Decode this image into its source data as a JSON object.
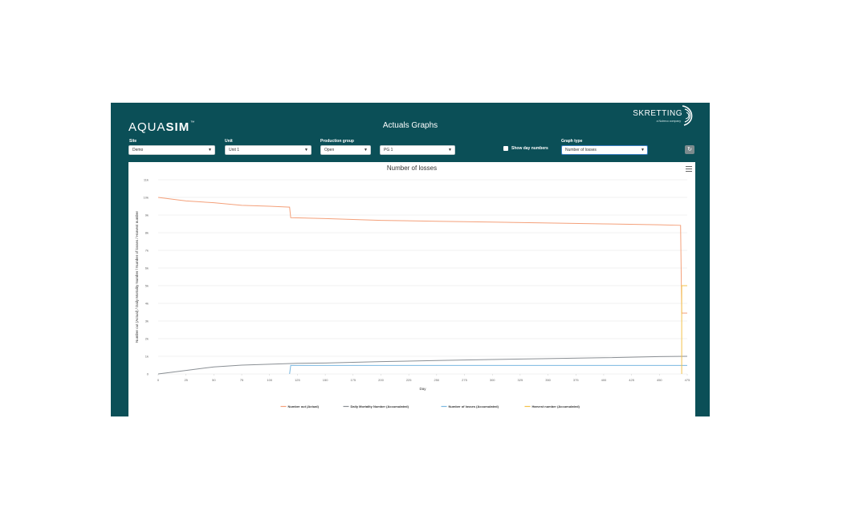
{
  "header": {
    "logo_light": "AQUA",
    "logo_bold": "SIM",
    "logo_tm": "™",
    "title": "Actuals Graphs",
    "brand_name": "SKRETTING",
    "brand_sub": "a Nutreco company"
  },
  "filters": {
    "site": {
      "label": "Site",
      "value": "Demo"
    },
    "unit": {
      "label": "Unit",
      "value": "Unit 1"
    },
    "production_group": {
      "label": "Production group",
      "value": "Open"
    },
    "production_unit": {
      "value": "PG 1"
    },
    "show_day_numbers": {
      "label": "Show day numbers",
      "checked": false
    },
    "graph_type": {
      "label": "Graph type",
      "value": "Number of losses"
    }
  },
  "icons": {
    "caret": "chevron-down-icon",
    "refresh": "refresh-icon",
    "menu": "hamburger-menu-icon"
  },
  "chart_data": {
    "type": "line",
    "title": "Number of losses",
    "xlabel": "Day",
    "ylabel": "Number out (Actual) / Daily Mortality Number / Number of losses / Harvest number",
    "xlim": [
      0,
      475
    ],
    "ylim": [
      0,
      11000
    ],
    "x_ticks": [
      "0",
      "25",
      "50",
      "75",
      "100",
      "125",
      "150",
      "175",
      "200",
      "225",
      "250",
      "275",
      "300",
      "325",
      "350",
      "375",
      "400",
      "425",
      "450",
      "475"
    ],
    "y_ticks": [
      "0",
      "1k",
      "2k",
      "3k",
      "4k",
      "5k",
      "6k",
      "7k",
      "8k",
      "9k",
      "10k",
      "11k"
    ],
    "series": [
      {
        "name": "Number out (Actual)",
        "color": "#f4a07a",
        "points": [
          [
            0,
            10000
          ],
          [
            25,
            9800
          ],
          [
            50,
            9700
          ],
          [
            75,
            9550
          ],
          [
            100,
            9500
          ],
          [
            118,
            9450
          ],
          [
            119,
            8850
          ],
          [
            150,
            8800
          ],
          [
            200,
            8700
          ],
          [
            250,
            8650
          ],
          [
            300,
            8600
          ],
          [
            350,
            8550
          ],
          [
            400,
            8500
          ],
          [
            450,
            8450
          ],
          [
            469,
            8420
          ],
          [
            470,
            3450
          ],
          [
            475,
            3450
          ]
        ]
      },
      {
        "name": "Daily Mortality Number (Accumulated)",
        "color": "#8a8f94",
        "points": [
          [
            0,
            0
          ],
          [
            25,
            200
          ],
          [
            50,
            400
          ],
          [
            75,
            500
          ],
          [
            100,
            550
          ],
          [
            125,
            600
          ],
          [
            150,
            620
          ],
          [
            200,
            700
          ],
          [
            250,
            760
          ],
          [
            300,
            820
          ],
          [
            350,
            870
          ],
          [
            400,
            920
          ],
          [
            450,
            980
          ],
          [
            475,
            1000
          ]
        ]
      },
      {
        "name": "Number of losses (Accumulated)",
        "color": "#7ab8e0",
        "points": [
          [
            118,
            0
          ],
          [
            119,
            480
          ],
          [
            200,
            480
          ],
          [
            300,
            480
          ],
          [
            400,
            480
          ],
          [
            475,
            480
          ]
        ]
      },
      {
        "name": "Harvest number (Accumulated)",
        "color": "#f3c24b",
        "points": [
          [
            470,
            0
          ],
          [
            470,
            5000
          ],
          [
            475,
            5000
          ]
        ]
      }
    ],
    "legend_position": "bottom-center",
    "grid": true
  }
}
